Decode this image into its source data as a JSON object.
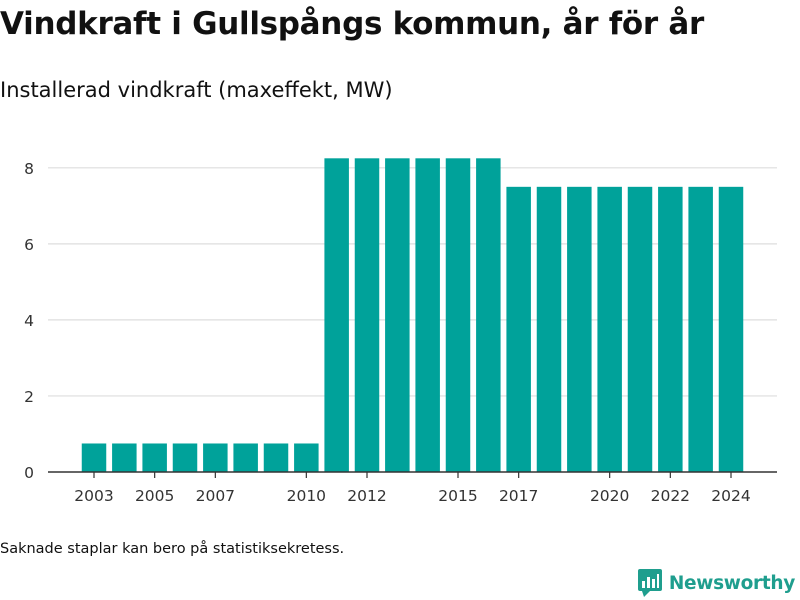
{
  "title": "Vindkraft i Gullspångs kommun, år för år",
  "subtitle": "Installerad vindkraft (maxeffekt, MW)",
  "footnote": "Saknade staplar kan bero på statistiksekretess.",
  "brand": {
    "name": "Newsworthy",
    "icon": "newsworthy-logo-icon",
    "color": "#1f9e8e"
  },
  "chart_data": {
    "type": "bar",
    "bar_color": "#00a29a",
    "categories": [
      "2003",
      "2004",
      "2005",
      "2006",
      "2007",
      "2008",
      "2009",
      "2010",
      "2011",
      "2012",
      "2013",
      "2014",
      "2015",
      "2016",
      "2017",
      "2018",
      "2019",
      "2020",
      "2021",
      "2022",
      "2023",
      "2024"
    ],
    "values": [
      0.75,
      0.75,
      0.75,
      0.75,
      0.75,
      0.75,
      0.75,
      0.75,
      8.25,
      8.25,
      8.25,
      8.25,
      8.25,
      8.25,
      7.5,
      7.5,
      7.5,
      7.5,
      7.5,
      7.5,
      7.5,
      7.5
    ],
    "x_tick_labels": [
      "2003",
      "2005",
      "2007",
      "2010",
      "2012",
      "2015",
      "2017",
      "2020",
      "2022",
      "2024"
    ],
    "y_ticks": [
      0,
      2,
      4,
      6,
      8
    ],
    "ylim": [
      0,
      8.6
    ],
    "grid": true,
    "xlabel": "",
    "ylabel": ""
  }
}
